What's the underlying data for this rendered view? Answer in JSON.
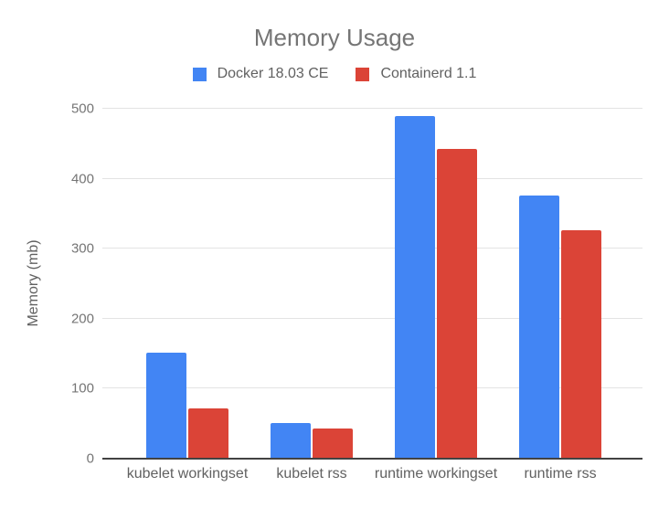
{
  "chart_data": {
    "type": "bar",
    "title": "Memory Usage",
    "ylabel": "Memory (mb)",
    "xlabel": "",
    "categories": [
      "kubelet workingset",
      "kubelet rss",
      "runtime workingset",
      "runtime rss"
    ],
    "series": [
      {
        "name": "Docker 18.03 CE",
        "color": "#4285F4",
        "values": [
          152,
          51,
          490,
          376
        ]
      },
      {
        "name": "Containerd 1.1",
        "color": "#DB4437",
        "values": [
          72,
          43,
          442,
          327
        ]
      }
    ],
    "ylim": [
      0,
      500
    ],
    "yticks": [
      0,
      100,
      200,
      300,
      400,
      500
    ],
    "grid": true,
    "legend_position": "top-center"
  },
  "colors": {
    "background": "#ffffff",
    "gridline": "#e3e3e3",
    "axis_line": "#424242",
    "title_text": "#757575",
    "tick_text": "#757575",
    "label_text": "#616161"
  }
}
